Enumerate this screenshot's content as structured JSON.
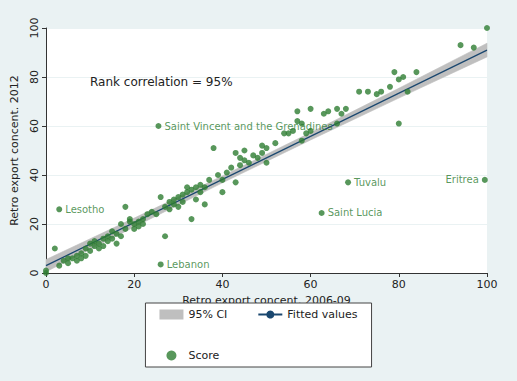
{
  "chart_data": {
    "type": "scatter",
    "x_label": "Retro export concent. 2006-09",
    "y_label": "Retro export concent. 2012",
    "annotations": [
      "Rank correlation = 95%"
    ],
    "xlim": [
      0,
      100
    ],
    "ylim": [
      0,
      100
    ],
    "xticks": [
      0,
      20,
      40,
      60,
      80,
      100
    ],
    "yticks": [
      0,
      20,
      40,
      60,
      80,
      100
    ],
    "grid": true,
    "legend": "bottom",
    "series": [
      {
        "name": "95% CI",
        "type": "band",
        "color": "#bfbfbf",
        "x": [
          0,
          20,
          40,
          60,
          80,
          100
        ],
        "lower": [
          0.5,
          18.8,
          36.8,
          54.3,
          71.4,
          88.2
        ],
        "upper": [
          5.5,
          22.4,
          39.6,
          57.3,
          75.4,
          93.8
        ]
      },
      {
        "name": "Fitted values",
        "type": "line",
        "color": "#1a476f",
        "x": [
          0,
          100
        ],
        "values": [
          3,
          91
        ]
      },
      {
        "name": "Score",
        "type": "scatter",
        "color": "#2e7d32",
        "marker": "circle",
        "x": [
          0,
          0,
          2,
          3,
          4,
          5,
          5,
          6,
          7,
          7,
          8,
          8,
          9,
          9,
          10,
          10,
          11,
          11,
          12,
          12,
          13,
          13,
          14,
          14,
          15,
          15,
          16,
          16,
          17,
          17,
          18,
          18,
          19,
          19,
          20,
          20,
          21,
          21,
          22,
          22,
          23,
          24,
          25,
          26,
          27,
          27,
          28,
          28,
          29,
          29,
          30,
          30,
          31,
          31,
          32,
          32,
          33,
          33,
          34,
          34,
          35,
          35,
          36,
          36,
          37,
          38,
          39,
          40,
          40,
          41,
          42,
          43,
          43,
          44,
          44,
          45,
          45,
          46,
          47,
          48,
          49,
          49,
          50,
          50,
          52,
          54,
          55,
          56,
          57,
          57,
          58,
          58,
          59,
          60,
          60,
          63,
          64,
          66,
          66,
          67,
          68,
          71,
          73,
          75,
          76,
          78,
          79,
          80,
          80,
          81,
          82,
          84,
          94,
          97,
          100,
          3,
          25.5,
          26,
          68.5,
          62.5,
          99.5
        ],
        "values": [
          0,
          1,
          10,
          3,
          5,
          6,
          4,
          6,
          7,
          5,
          6,
          8,
          7,
          10,
          9,
          12,
          11,
          13,
          10,
          12,
          14,
          11,
          13,
          15,
          14,
          17,
          16,
          12,
          15,
          20,
          18,
          27,
          21,
          22,
          18,
          20,
          21,
          19,
          20,
          22,
          24,
          25,
          24,
          31,
          27,
          15,
          26,
          29,
          28,
          30,
          31,
          27,
          29,
          32,
          33,
          35,
          34,
          22,
          35,
          30,
          33,
          36,
          28,
          35,
          38,
          51,
          40,
          38,
          33,
          41,
          43,
          49,
          37,
          47,
          44,
          46,
          50,
          45,
          48,
          47,
          49,
          52,
          51,
          45,
          53,
          57,
          57,
          58,
          62,
          66,
          54,
          61,
          57,
          58,
          67,
          65,
          66,
          67,
          61,
          65,
          67,
          74,
          74,
          73,
          74,
          76,
          82,
          61,
          79,
          80,
          74,
          82,
          93,
          92,
          100,
          26,
          60,
          3.5,
          37,
          24.5,
          38
        ],
        "labels": [
          null,
          null,
          null,
          null,
          null,
          null,
          null,
          null,
          null,
          null,
          null,
          null,
          null,
          null,
          null,
          null,
          null,
          null,
          null,
          null,
          null,
          null,
          null,
          null,
          null,
          null,
          null,
          null,
          null,
          null,
          null,
          null,
          null,
          null,
          null,
          null,
          null,
          null,
          null,
          null,
          null,
          null,
          null,
          null,
          null,
          null,
          null,
          null,
          null,
          null,
          null,
          null,
          null,
          null,
          null,
          null,
          null,
          null,
          null,
          null,
          null,
          null,
          null,
          null,
          null,
          null,
          null,
          null,
          null,
          null,
          null,
          null,
          null,
          null,
          null,
          null,
          null,
          null,
          null,
          null,
          null,
          null,
          null,
          null,
          null,
          null,
          null,
          null,
          null,
          null,
          null,
          null,
          null,
          null,
          null,
          null,
          null,
          null,
          null,
          null,
          null,
          null,
          null,
          null,
          null,
          null,
          null,
          null,
          null,
          null,
          null,
          null,
          null,
          null,
          null,
          "Lesotho",
          "Saint Vincent and the Grenadines",
          "Lebanon",
          "Tuvalu",
          "Saint Lucia",
          "Eritrea"
        ]
      }
    ]
  }
}
